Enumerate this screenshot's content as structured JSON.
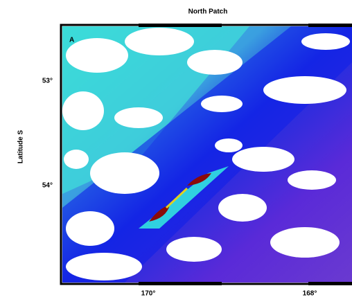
{
  "header": {
    "title": "North Patch"
  },
  "panel": {
    "label": "A"
  },
  "axes": {
    "y_label": "Latitude S",
    "lat_ticks": [
      "53°",
      "54°"
    ],
    "lon_ticks": [
      "170°",
      "168°"
    ]
  }
}
